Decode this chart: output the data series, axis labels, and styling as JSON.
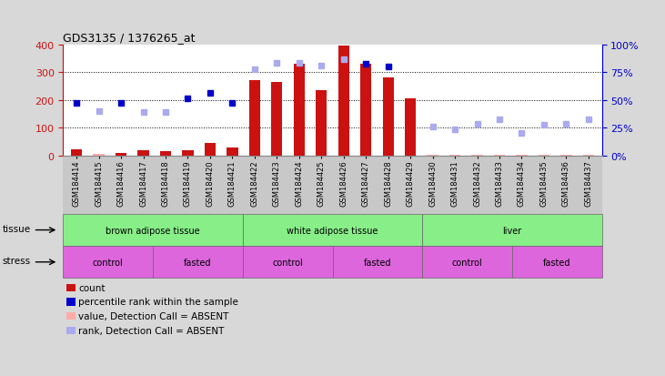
{
  "title": "GDS3135 / 1376265_at",
  "samples": [
    "GSM184414",
    "GSM184415",
    "GSM184416",
    "GSM184417",
    "GSM184418",
    "GSM184419",
    "GSM184420",
    "GSM184421",
    "GSM184422",
    "GSM184423",
    "GSM184424",
    "GSM184425",
    "GSM184426",
    "GSM184427",
    "GSM184428",
    "GSM184429",
    "GSM184430",
    "GSM184431",
    "GSM184432",
    "GSM184433",
    "GSM184434",
    "GSM184435",
    "GSM184436",
    "GSM184437"
  ],
  "count_present": [
    22,
    null,
    10,
    18,
    15,
    20,
    45,
    30,
    270,
    265,
    330,
    235,
    395,
    330,
    280,
    205,
    null,
    null,
    null,
    null,
    null,
    null,
    null,
    null
  ],
  "count_absent": [
    null,
    5,
    null,
    null,
    null,
    null,
    null,
    null,
    null,
    null,
    null,
    null,
    null,
    null,
    null,
    null,
    3,
    4,
    3,
    3,
    3,
    3,
    3,
    3
  ],
  "rank_present": [
    190,
    null,
    190,
    null,
    null,
    205,
    225,
    190,
    null,
    null,
    null,
    null,
    null,
    330,
    320,
    null,
    null,
    null,
    null,
    null,
    null,
    null,
    null,
    null
  ],
  "rank_absent": [
    null,
    160,
    null,
    155,
    155,
    null,
    null,
    null,
    310,
    335,
    335,
    325,
    345,
    null,
    null,
    null,
    105,
    95,
    115,
    130,
    80,
    110,
    115,
    130
  ],
  "ylim_left": [
    0,
    400
  ],
  "yticks_left": [
    0,
    100,
    200,
    300,
    400
  ],
  "yticks_right": [
    0,
    25,
    50,
    75,
    100
  ],
  "ytick_labels_right": [
    "0%",
    "25%",
    "50%",
    "75%",
    "100%"
  ],
  "tissue_groups": [
    {
      "label": "brown adipose tissue",
      "start": 0,
      "end": 8
    },
    {
      "label": "white adipose tissue",
      "start": 8,
      "end": 16
    },
    {
      "label": "liver",
      "start": 16,
      "end": 24
    }
  ],
  "stress_groups": [
    {
      "label": "control",
      "start": 0,
      "end": 4
    },
    {
      "label": "fasted",
      "start": 4,
      "end": 8
    },
    {
      "label": "control",
      "start": 8,
      "end": 12
    },
    {
      "label": "fasted",
      "start": 12,
      "end": 16
    },
    {
      "label": "control",
      "start": 16,
      "end": 20
    },
    {
      "label": "fasted",
      "start": 20,
      "end": 24
    }
  ],
  "bar_color_present": "#cc1111",
  "bar_color_absent": "#ffaaaa",
  "rank_color_present": "#0000cc",
  "rank_color_absent": "#aaaaee",
  "tissue_color": "#88ee88",
  "stress_color": "#dd66dd",
  "bg_color": "#d8d8d8",
  "plot_bg": "#ffffff",
  "xtick_bg": "#c8c8c8",
  "left_axis_color": "#cc1111",
  "right_axis_color": "#0000cc",
  "legend_entries": [
    {
      "color": "#cc1111",
      "label": "count"
    },
    {
      "color": "#0000cc",
      "label": "percentile rank within the sample"
    },
    {
      "color": "#ffaaaa",
      "label": "value, Detection Call = ABSENT"
    },
    {
      "color": "#aaaaee",
      "label": "rank, Detection Call = ABSENT"
    }
  ]
}
